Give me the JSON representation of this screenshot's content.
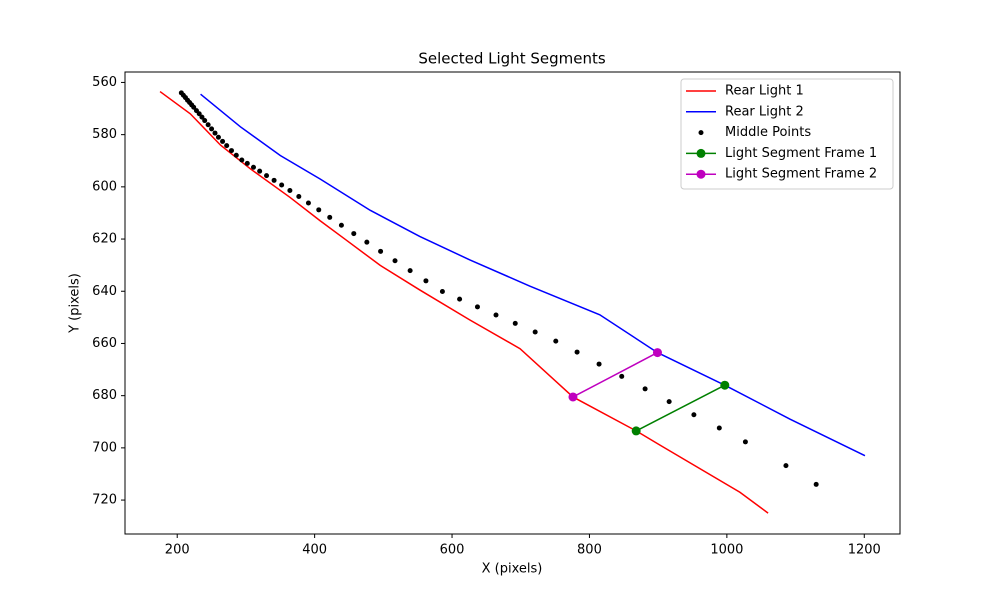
{
  "chart_data": {
    "type": "line",
    "title": "Selected Light Segments",
    "x_label": "X (pixels)",
    "y_label": "Y (pixels)",
    "xlim": [
      124,
      1252
    ],
    "ylim": [
      556,
      733
    ],
    "y_inverted": true,
    "xticks": [
      200,
      400,
      600,
      800,
      1000,
      1200
    ],
    "yticks": [
      560,
      580,
      600,
      620,
      640,
      660,
      680,
      700,
      720
    ],
    "legend": "upper right",
    "series": [
      {
        "name": "Rear Light 1",
        "color": "#ff0000",
        "style": "line",
        "x": [
          175,
          219,
          263,
          306,
          364,
          408,
          444,
          495,
          553,
          626,
          699,
          776,
          868,
          903,
          1019,
          1060
        ],
        "values": [
          563.5,
          572,
          584,
          593,
          604,
          613,
          620,
          630,
          639.5,
          651,
          662,
          680.5,
          693.5,
          699,
          717,
          725
        ]
      },
      {
        "name": "Rear Light 2",
        "color": "#0000ff",
        "style": "line",
        "x": [
          234,
          292,
          350,
          408,
          481,
          553,
          626,
          713,
          815,
          899,
          997,
          1092,
          1201
        ],
        "values": [
          564.5,
          577,
          588,
          597,
          609,
          619,
          628,
          638,
          649,
          663.5,
          676,
          689,
          703
        ]
      },
      {
        "name": "Middle Points",
        "color": "#000000",
        "style": "dots",
        "x": [
          206,
          209,
          212,
          215,
          218,
          221,
          224,
          228,
          232,
          236,
          240,
          245,
          250,
          255,
          260,
          266,
          272,
          279,
          286,
          294,
          302,
          311,
          320,
          330,
          341,
          352,
          364,
          377,
          391,
          406,
          422,
          439,
          457,
          476,
          496,
          517,
          539,
          562,
          586,
          611,
          637,
          664,
          692,
          721,
          751,
          782,
          814,
          847,
          881,
          916,
          952,
          989,
          1027,
          1086,
          1130
        ],
        "values": [
          564,
          564.9,
          565.8,
          566.8,
          567.7,
          568.6,
          569.5,
          570.8,
          572,
          573.3,
          574.6,
          576.2,
          577.8,
          579.4,
          581,
          582.6,
          584.2,
          586.1,
          587.9,
          589.7,
          591,
          592.5,
          594,
          595.7,
          597.5,
          599.3,
          601.4,
          603.7,
          606.2,
          608.8,
          611.7,
          614.7,
          617.9,
          621.2,
          624.7,
          628.3,
          632.1,
          636,
          640.1,
          643,
          646,
          649.1,
          652.3,
          655.6,
          659.1,
          663.3,
          667.9,
          672.6,
          677.4,
          682.3,
          687.3,
          692.4,
          697.7,
          706.8,
          714
        ]
      },
      {
        "name": "Light Segment Frame 1",
        "color": "#008000",
        "style": "line-markers",
        "x": [
          868,
          997
        ],
        "values": [
          693.5,
          676
        ]
      },
      {
        "name": "Light Segment Frame 2",
        "color": "#bf00bf",
        "style": "line-markers",
        "x": [
          776,
          899
        ],
        "values": [
          680.5,
          663.5
        ]
      }
    ]
  }
}
